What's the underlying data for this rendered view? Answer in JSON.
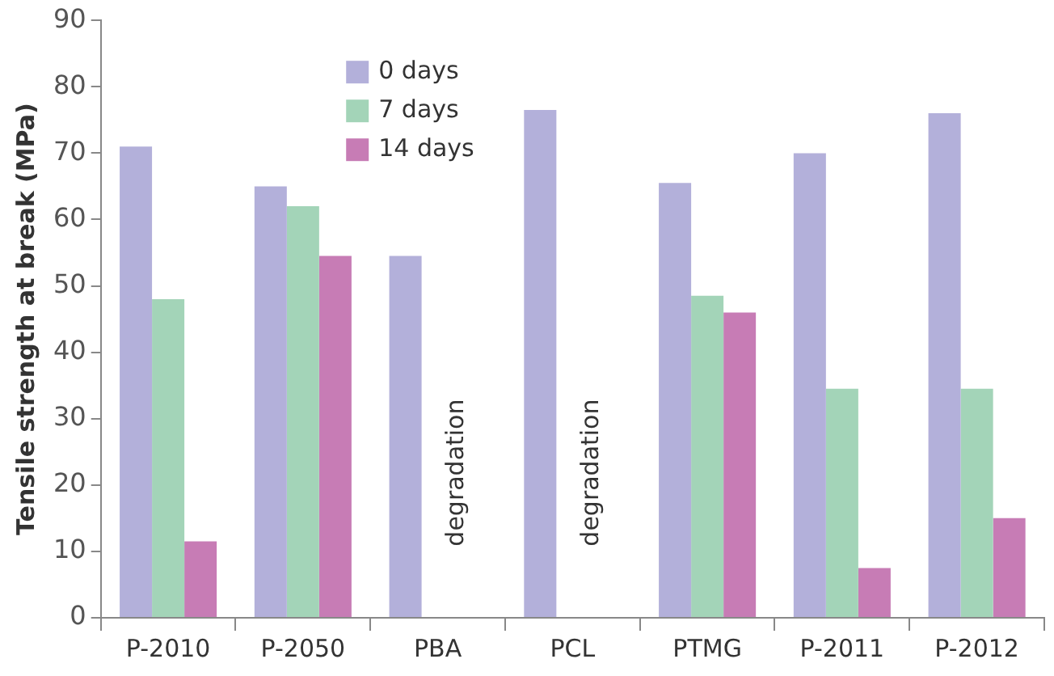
{
  "chart_data": {
    "type": "bar",
    "ylabel": "Tensile strength at break (MPa)",
    "categories": [
      "P-2010",
      "P-2050",
      "PBA",
      "PCL",
      "PTMG",
      "P-2011",
      "P-2012"
    ],
    "series": [
      {
        "name": "0 days",
        "color": "#b3b0da",
        "values": [
          71,
          65,
          54.5,
          76.5,
          65.5,
          70,
          76
        ]
      },
      {
        "name": "7 days",
        "color": "#a3d4b8",
        "values": [
          48,
          62,
          null,
          null,
          48.5,
          34.5,
          34.5
        ]
      },
      {
        "name": "14 days",
        "color": "#c77cb5",
        "values": [
          11.5,
          54.5,
          null,
          null,
          46,
          7.5,
          15
        ]
      }
    ],
    "ylim": [
      0,
      90
    ],
    "yticks": [
      0,
      10,
      20,
      30,
      40,
      50,
      60,
      70,
      80,
      90
    ],
    "grid": false,
    "legend": "top",
    "annotations": [
      "degradation",
      "degradation"
    ]
  }
}
